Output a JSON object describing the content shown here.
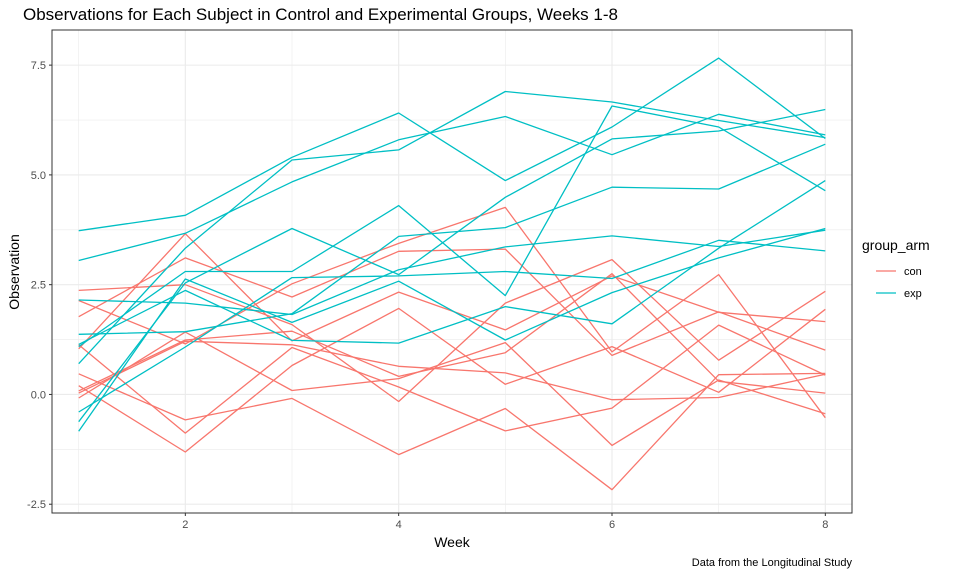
{
  "chart_data": {
    "type": "line",
    "title": "Observations for Each Subject in Control and Experimental Groups, Weeks 1-8",
    "xlabel": "Week",
    "ylabel": "Observation",
    "caption": "Data from the Longitudinal Study",
    "xlim": [
      0.75,
      8.25
    ],
    "ylim": [
      -2.7,
      8.3
    ],
    "x_ticks": [
      2,
      4,
      6,
      8
    ],
    "y_ticks": [
      -2.5,
      0.0,
      2.5,
      5.0,
      7.5
    ],
    "y_tick_labels": [
      "-2.5",
      "0.0",
      "2.5",
      "5.0",
      "7.5"
    ],
    "x_tick_labels": [
      "2",
      "4",
      "6",
      "8"
    ],
    "grid": true,
    "legend": {
      "title": "group_arm",
      "position": "right",
      "entries": [
        {
          "label": "con",
          "color": "#F8766D"
        },
        {
          "label": "exp",
          "color": "#00BFC4"
        }
      ]
    },
    "x": [
      1,
      2,
      3,
      4,
      5,
      6,
      7,
      8
    ],
    "series": [
      {
        "group": "con",
        "values": [
          0.2,
          -1.31,
          0.66,
          1.96,
          0.23,
          1.09,
          0.05,
          1.94
        ]
      },
      {
        "group": "con",
        "values": [
          1.13,
          -0.88,
          1.07,
          0.17,
          -0.83,
          -0.31,
          1.58,
          0.44
        ]
      },
      {
        "group": "con",
        "values": [
          1.77,
          3.11,
          2.22,
          3.26,
          3.31,
          0.89,
          1.88,
          1.01
        ]
      },
      {
        "group": "con",
        "values": [
          1.04,
          3.66,
          1.22,
          2.33,
          1.47,
          2.7,
          1.87,
          1.66
        ]
      },
      {
        "group": "con",
        "values": [
          0.47,
          -0.58,
          -0.09,
          -1.37,
          -0.32,
          -2.17,
          0.45,
          0.48
        ]
      },
      {
        "group": "con",
        "values": [
          2.37,
          2.5,
          1.59,
          -0.16,
          2.08,
          3.07,
          0.78,
          2.35
        ]
      },
      {
        "group": "con",
        "values": [
          0.03,
          1.21,
          1.13,
          0.64,
          0.49,
          -0.12,
          -0.07,
          0.46
        ]
      },
      {
        "group": "con",
        "values": [
          -0.08,
          1.42,
          0.09,
          0.36,
          1.18,
          -1.16,
          0.33,
          -0.44
        ]
      },
      {
        "group": "con",
        "values": [
          0.08,
          1.24,
          1.44,
          0.41,
          0.95,
          2.75,
          0.3,
          0.03
        ]
      },
      {
        "group": "con",
        "values": [
          2.14,
          1.15,
          2.52,
          3.44,
          4.26,
          0.97,
          2.73,
          -0.53
        ]
      },
      {
        "group": "exp",
        "values": [
          3.05,
          3.67,
          4.84,
          5.8,
          6.33,
          5.46,
          6.38,
          5.91
        ]
      },
      {
        "group": "exp",
        "values": [
          -0.84,
          2.63,
          1.64,
          2.58,
          1.24,
          2.32,
          3.11,
          3.78
        ]
      },
      {
        "group": "exp",
        "values": [
          2.15,
          2.08,
          1.82,
          2.84,
          3.36,
          3.61,
          3.37,
          3.74
        ]
      },
      {
        "group": "exp",
        "values": [
          -0.62,
          2.54,
          3.78,
          2.73,
          4.49,
          5.82,
          6.0,
          6.49
        ]
      },
      {
        "group": "exp",
        "values": [
          0.7,
          3.33,
          5.34,
          5.57,
          6.9,
          6.66,
          6.24,
          5.85
        ]
      },
      {
        "group": "exp",
        "values": [
          3.73,
          4.08,
          5.4,
          6.41,
          4.87,
          6.09,
          7.66,
          5.83
        ]
      },
      {
        "group": "exp",
        "values": [
          1.09,
          2.8,
          2.8,
          4.3,
          2.25,
          6.57,
          6.09,
          4.64
        ]
      },
      {
        "group": "exp",
        "values": [
          1.37,
          1.43,
          1.84,
          3.6,
          3.8,
          4.72,
          4.68,
          5.7
        ]
      },
      {
        "group": "exp",
        "values": [
          -0.4,
          1.08,
          2.66,
          2.7,
          2.8,
          2.64,
          3.51,
          3.27
        ]
      },
      {
        "group": "exp",
        "values": [
          1.14,
          2.37,
          1.23,
          1.17,
          2.0,
          1.61,
          3.33,
          4.87
        ]
      }
    ]
  }
}
